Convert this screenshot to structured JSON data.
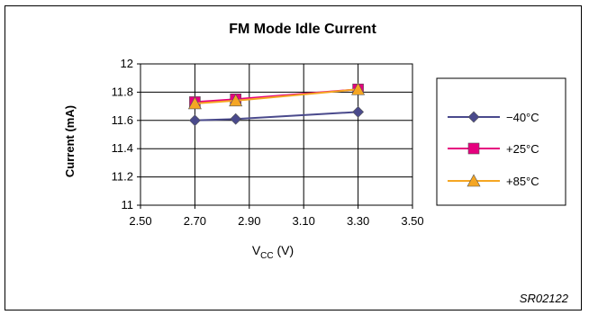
{
  "figure_id": "SR02122",
  "colors": {
    "series_0": "#4a4a8c",
    "series_1": "#e6007e",
    "series_2": "#f5a623"
  },
  "chart_data": {
    "type": "line",
    "title": "FM Mode Idle Current",
    "xlabel_main": "V",
    "xlabel_sub": "CC",
    "xlabel_unit": " (V)",
    "ylabel": "Current (mA)",
    "xlim": [
      2.5,
      3.5
    ],
    "ylim": [
      11.0,
      12.0
    ],
    "x_ticks": [
      "2.50",
      "2.70",
      "2.90",
      "3.10",
      "3.30",
      "3.50"
    ],
    "y_ticks": [
      "12",
      "11.8",
      "11.6",
      "11.4",
      "11.2",
      "11"
    ],
    "grid": true,
    "legend_position": "right",
    "x": [
      2.7,
      2.85,
      3.3
    ],
    "series": [
      {
        "name": "−40°C",
        "marker": "diamond",
        "values": [
          11.6,
          11.61,
          11.66
        ]
      },
      {
        "name": "+25°C",
        "marker": "square",
        "values": [
          11.73,
          11.75,
          11.82
        ]
      },
      {
        "name": "+85°C",
        "marker": "triangle",
        "values": [
          11.72,
          11.74,
          11.82
        ]
      }
    ]
  }
}
